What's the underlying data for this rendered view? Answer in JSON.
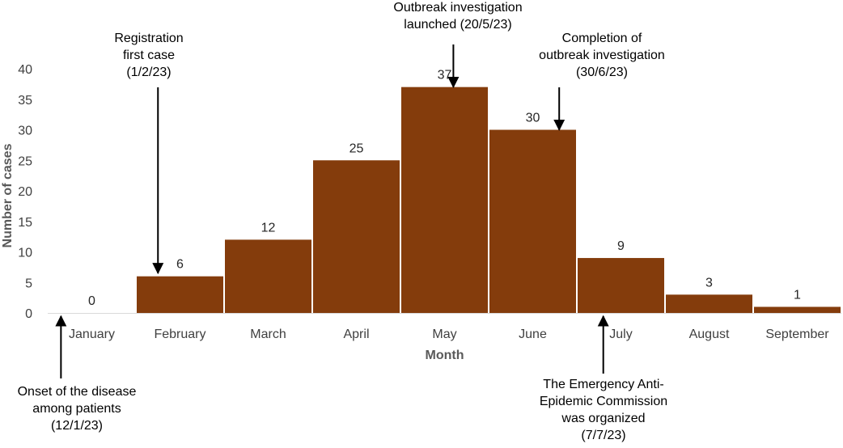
{
  "chart_data": {
    "type": "bar",
    "categories": [
      "January",
      "February",
      "March",
      "April",
      "May",
      "June",
      "July",
      "August",
      "September"
    ],
    "values": [
      0,
      6,
      12,
      25,
      37,
      30,
      9,
      3,
      1
    ],
    "xlabel": "Month",
    "ylabel": "Number of cases",
    "ylim": [
      0,
      40
    ],
    "yticks": [
      0,
      5,
      10,
      15,
      20,
      25,
      30,
      35,
      40
    ],
    "grid": false,
    "legend": "none",
    "bar_color": "#843C0C",
    "annotations": [
      {
        "lines": [
          "Registration",
          "first case",
          "(1/2/23)"
        ],
        "category": "February",
        "x_position": 0.25,
        "arrow": "down",
        "points_to_value": 6
      },
      {
        "lines": [
          "Outbreak investigation",
          "launched (20/5/23)"
        ],
        "category": "May",
        "x_position": 0.6,
        "arrow": "down",
        "points_to_value": 37
      },
      {
        "lines": [
          "Completion of",
          "outbreak investigation",
          "(30/6/23)"
        ],
        "category": "June",
        "x_position": 0.8,
        "arrow": "down",
        "points_to_value": 30
      },
      {
        "lines": [
          "Onset of the disease",
          "among patients",
          "(12/1/23)"
        ],
        "category": "January",
        "x_position": 0.15,
        "arrow": "up",
        "points_to_value": 0
      },
      {
        "lines": [
          "The Emergency Anti-",
          "Epidemic Commission",
          "was organized",
          "(7/7/23)"
        ],
        "category": "July",
        "x_position": 0.3,
        "arrow": "up",
        "points_to_value": 0
      }
    ]
  }
}
